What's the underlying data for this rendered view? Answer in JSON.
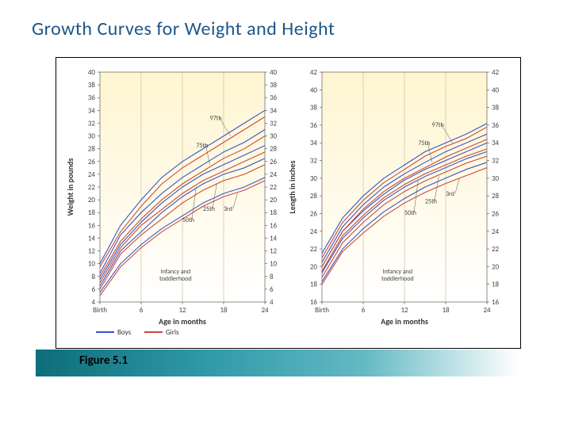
{
  "title": "Growth Curves for Weight and Height",
  "caption": "Figure 5.1",
  "panel_bg_top": "#fff5d0",
  "panel_bg_bottom": "#ffffff",
  "grid_color": "#c8c0a0",
  "axis_color": "#444444",
  "boys_color": "#3a55c8",
  "girls_color": "#c84a3a",
  "legend": {
    "boys": "Boys",
    "girls": "Girls"
  },
  "annotation": "Infancy and\ntoddlerhood",
  "percentile_labels": [
    "97th",
    "75th",
    "50th",
    "25th",
    "3rd"
  ],
  "ages_months": [
    0,
    3,
    6,
    9,
    12,
    15,
    18,
    21,
    24
  ],
  "x_labels": {
    "0": "Birth",
    "6": "6",
    "12": "12",
    "18": "18",
    "24": "24"
  },
  "weight": {
    "ylabel": "Weight in pounds",
    "xlabel": "Age in months",
    "ymin": 4,
    "ymax": 40,
    "ytick_step": 2,
    "boys": {
      "97": [
        10,
        16,
        20,
        23.5,
        26,
        28,
        30,
        32,
        34
      ],
      "75": [
        8.5,
        14.5,
        18,
        21,
        23.5,
        25.5,
        27.5,
        29,
        31
      ],
      "50": [
        7.5,
        13,
        16.5,
        19.5,
        22,
        24,
        25.5,
        27,
        28.5
      ],
      "25": [
        6.5,
        12,
        15,
        18,
        20.5,
        22.5,
        24,
        25,
        26.5
      ],
      "3": [
        5.5,
        10,
        13,
        15.5,
        17.5,
        19.5,
        21,
        22,
        23.5
      ]
    },
    "girls": {
      "97": [
        9.5,
        15,
        19,
        22.5,
        25,
        27,
        29,
        31,
        33
      ],
      "75": [
        8,
        13.5,
        17,
        20,
        22.5,
        24.5,
        26.5,
        28,
        30
      ],
      "50": [
        7,
        12.5,
        16,
        18.5,
        21,
        23,
        24.5,
        26,
        27.5
      ],
      "25": [
        6,
        11.5,
        14.5,
        17,
        19.5,
        21.5,
        23,
        24,
        25.5
      ],
      "3": [
        5,
        9.5,
        12.5,
        15,
        17,
        19,
        20.5,
        21.5,
        23
      ]
    }
  },
  "height": {
    "ylabel": "Length in inches",
    "xlabel": "Age in months",
    "ymin": 16,
    "ymax": 42,
    "ytick_step": 2,
    "boys": {
      "97": [
        21.5,
        25.5,
        28,
        30,
        31.5,
        33,
        34,
        35,
        36.2
      ],
      "75": [
        20.5,
        24.5,
        27,
        29,
        30.5,
        31.8,
        33,
        34,
        35
      ],
      "50": [
        20,
        24,
        26.3,
        28.2,
        29.8,
        31,
        32,
        33,
        34
      ],
      "25": [
        19.3,
        23.2,
        25.5,
        27.5,
        29,
        30.2,
        31.2,
        32.2,
        33
      ],
      "3": [
        18.3,
        22,
        24.3,
        26.2,
        27.7,
        29,
        30,
        31,
        31.8
      ]
    },
    "girls": {
      "97": [
        21,
        25,
        27.5,
        29.5,
        31,
        32.5,
        33.6,
        34.5,
        35.8
      ],
      "75": [
        20,
        24,
        26.5,
        28.5,
        30,
        31.2,
        32.4,
        33.4,
        34.4
      ],
      "50": [
        19.5,
        23.5,
        25.8,
        27.8,
        29.3,
        30.5,
        31.5,
        32.5,
        33.3
      ],
      "25": [
        18.8,
        22.7,
        25,
        27,
        28.5,
        29.7,
        30.7,
        31.7,
        32.5
      ],
      "3": [
        18,
        21.7,
        23.8,
        25.7,
        27.2,
        28.4,
        29.4,
        30.3,
        31.2
      ]
    }
  }
}
